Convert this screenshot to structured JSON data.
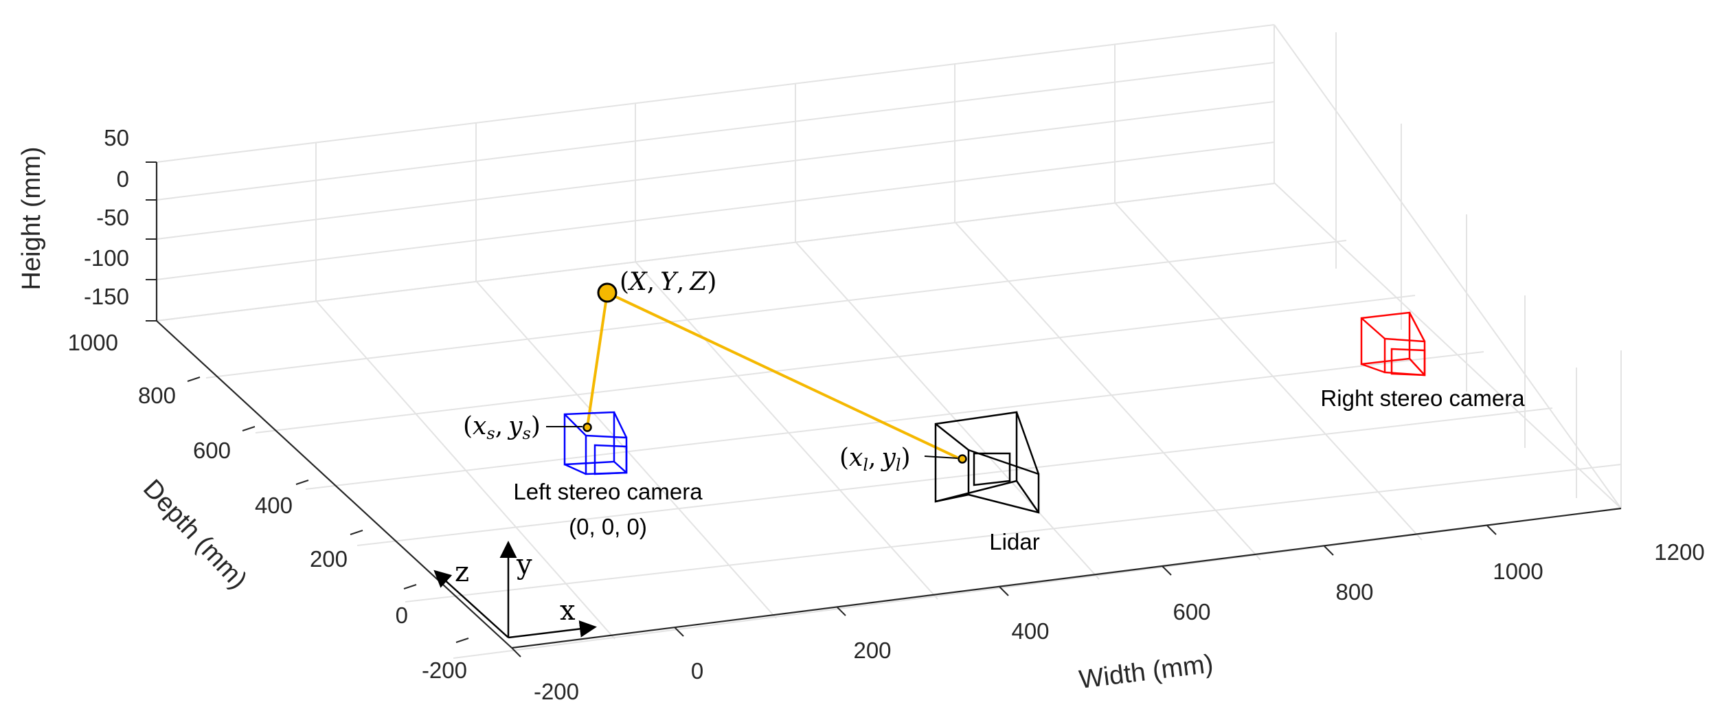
{
  "axes": {
    "height_label": "Height (mm)",
    "depth_label": "Depth (mm)",
    "width_label": "Width (mm)",
    "height_ticks": [
      "50",
      "0",
      "-50",
      "-100",
      "-150"
    ],
    "depth_ticks": [
      "1000",
      "800",
      "600",
      "400",
      "200",
      "0",
      "-200"
    ],
    "width_ticks": [
      "-200",
      "0",
      "200",
      "400",
      "600",
      "800",
      "1000",
      "1200"
    ],
    "grid": true
  },
  "point": {
    "label_X": "X",
    "label_Y": "Y",
    "label_Z": "Z",
    "color": "#f5b800"
  },
  "left_camera": {
    "label": "Left stereo camera",
    "origin": "(0, 0, 0)",
    "projection_x": "x",
    "projection_y": "y",
    "projection_sub": "s",
    "color": "#0000ff"
  },
  "lidar": {
    "label": "Lidar",
    "projection_x": "x",
    "projection_y": "y",
    "projection_sub": "l",
    "color": "#000000"
  },
  "right_camera": {
    "label": "Right stereo camera",
    "color": "#ff0000"
  },
  "frame": {
    "x": "x",
    "y": "y",
    "z": "z"
  }
}
